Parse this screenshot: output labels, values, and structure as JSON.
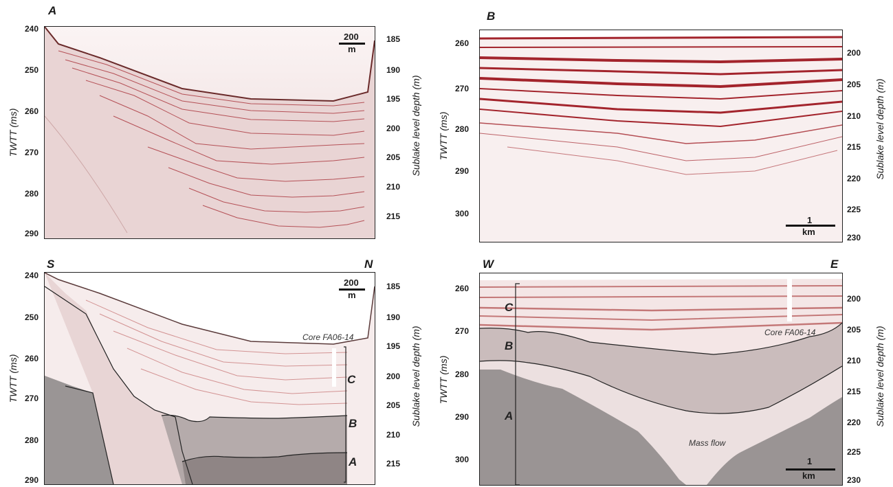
{
  "panels": {
    "A": {
      "letter": "A",
      "y_ticks": [
        "240",
        "250",
        "260",
        "270",
        "280",
        "290"
      ],
      "depth_ticks": [
        "185",
        "190",
        "195",
        "200",
        "205",
        "210",
        "215"
      ],
      "scale_value": "200",
      "scale_unit": "m"
    },
    "B": {
      "letter": "B",
      "y_ticks": [
        "260",
        "270",
        "280",
        "290",
        "300"
      ],
      "depth_ticks": [
        "200",
        "205",
        "210",
        "215",
        "220",
        "225",
        "230"
      ],
      "scale_value": "1",
      "scale_unit": "km"
    },
    "C": {
      "left_dir": "S",
      "right_dir": "N",
      "y_ticks": [
        "240",
        "250",
        "260",
        "270",
        "280",
        "290"
      ],
      "depth_ticks": [
        "185",
        "190",
        "195",
        "200",
        "205",
        "210",
        "215"
      ],
      "scale_value": "200",
      "scale_unit": "m",
      "core_label": "Core FA06-14",
      "units": [
        "C",
        "B",
        "A"
      ]
    },
    "D": {
      "left_dir": "W",
      "right_dir": "E",
      "y_ticks": [
        "260",
        "270",
        "280",
        "290",
        "300"
      ],
      "depth_ticks": [
        "200",
        "205",
        "210",
        "215",
        "220",
        "225",
        "230"
      ],
      "scale_value": "1",
      "scale_unit": "km",
      "core_label": "Core FA06-14",
      "units": [
        "C",
        "B",
        "A"
      ],
      "mass_flow_label": "Mass flow"
    }
  },
  "axis_titles": {
    "left": "TWTT (ms)",
    "right": "Sublake level depth (m)"
  },
  "colors": {
    "reflector": "#a3242c",
    "fill_gray": "#8f8f8f",
    "background": "#f7eeee",
    "frame": "#222222"
  }
}
